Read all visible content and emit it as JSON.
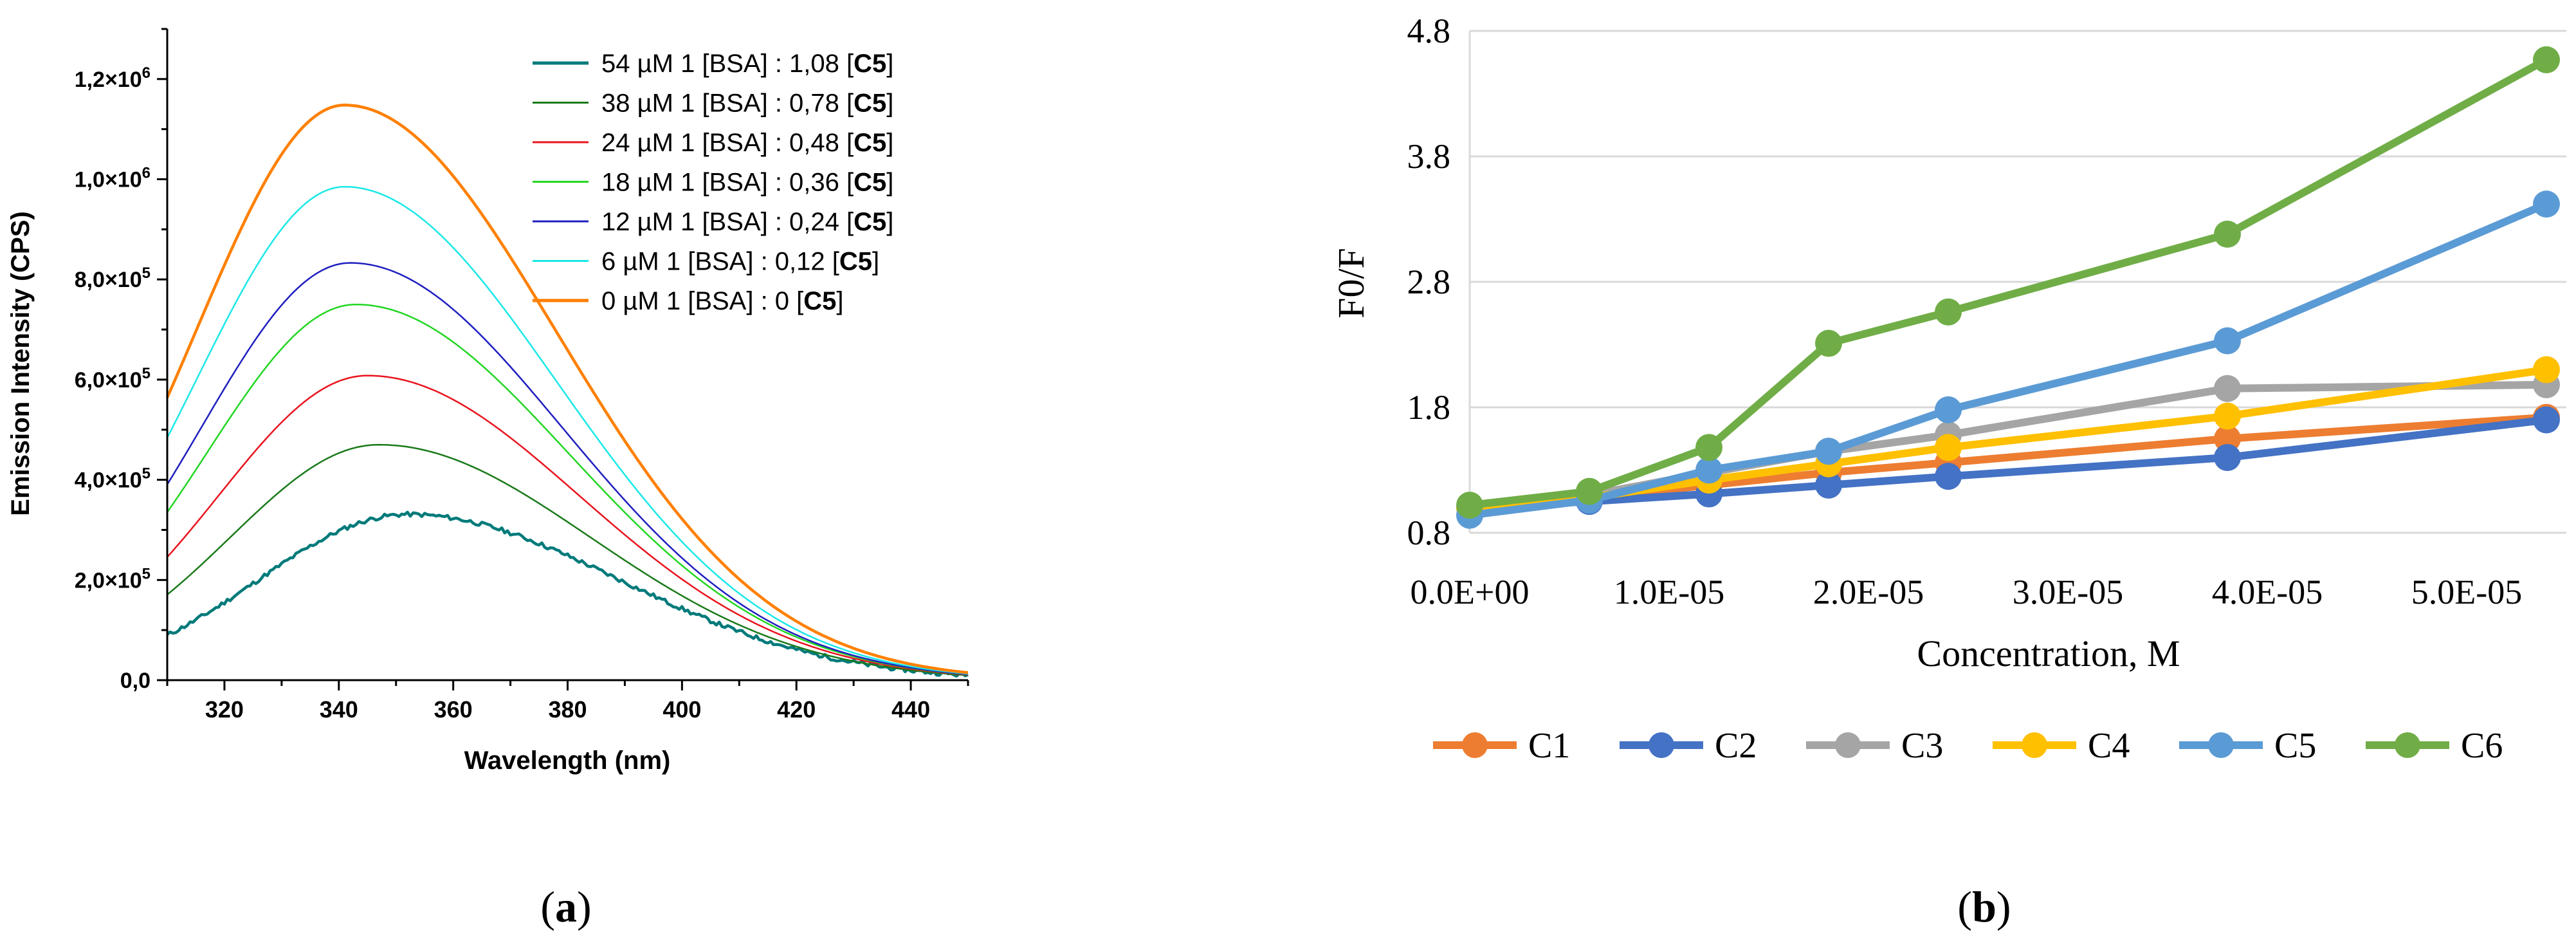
{
  "panel_labels": {
    "a": "a",
    "b": "b"
  },
  "chart_data": [
    {
      "type": "line",
      "title": "",
      "xlabel": "Wavelength (nm)",
      "ylabel": "Emission Intensity (CPS)",
      "xlim": [
        310,
        450
      ],
      "ylim": [
        0,
        1300000
      ],
      "x_ticks": [
        320,
        340,
        360,
        380,
        400,
        420,
        440
      ],
      "x_tick_labels": [
        "320",
        "340",
        "360",
        "380",
        "400",
        "420",
        "440"
      ],
      "y_ticks": [
        0,
        200000,
        400000,
        600000,
        800000,
        1000000,
        1200000
      ],
      "y_tick_labels": [
        {
          "mant": "0,0",
          "exp": ""
        },
        {
          "mant": "2,0×10",
          "exp": "5"
        },
        {
          "mant": "4,0×10",
          "exp": "5"
        },
        {
          "mant": "6,0×10",
          "exp": "5"
        },
        {
          "mant": "8,0×10",
          "exp": "5"
        },
        {
          "mant": "1,0×10",
          "exp": "6"
        },
        {
          "mant": "1,2×10",
          "exp": "6"
        }
      ],
      "series": [
        {
          "name": "54 µM 1 [BSA] : 1,08 [C5]",
          "label_prefix": "54 µM 1 [BSA] : 1,08 [",
          "label_bold": "C5",
          "label_suffix": "]",
          "color": "#007a7a",
          "width": 4.5,
          "peak": 331000,
          "peak_x": 352,
          "noise": true
        },
        {
          "name": "38 µM 1 [BSA] : 0,78 [C5]",
          "label_prefix": "38 µM 1 [BSA] : 0,78 [",
          "label_bold": "C5",
          "label_suffix": "]",
          "color": "#1a7a1a",
          "width": 2.5,
          "peak": 470000,
          "peak_x": 347,
          "noise": false
        },
        {
          "name": "24 µM 1 [BSA] : 0,48 [C5]",
          "label_prefix": "24 µM 1 [BSA] : 0,48 [",
          "label_bold": "C5",
          "label_suffix": "]",
          "color": "#e8141e",
          "width": 2.5,
          "peak": 608000,
          "peak_x": 345,
          "noise": false
        },
        {
          "name": "18 µM 1 [BSA] : 0,36 [C5]",
          "label_prefix": "18 µM 1 [BSA] : 0,36 [",
          "label_bold": "C5",
          "label_suffix": "]",
          "color": "#22d622",
          "width": 2.5,
          "peak": 750000,
          "peak_x": 343,
          "noise": false
        },
        {
          "name": "12 µM 1 [BSA] : 0,24 [C5]",
          "label_prefix": "12 µM 1 [BSA] : 0,24 [",
          "label_bold": "C5",
          "label_suffix": "]",
          "color": "#1f1fbf",
          "width": 2.5,
          "peak": 833000,
          "peak_x": 342,
          "noise": false
        },
        {
          "name": "6 µM 1 [BSA] : 0,12 [C5]",
          "label_prefix": "6 µM   1 [BSA] : 0,12 [",
          "label_bold": "C5",
          "label_suffix": "]",
          "color": "#1ae8e8",
          "width": 2.5,
          "peak": 985000,
          "peak_x": 341,
          "noise": false
        },
        {
          "name": "0 µM 1 [BSA] : 0 [C5]",
          "label_prefix": "0 µM   1 [BSA] : 0 [",
          "label_bold": "C5",
          "label_suffix": "]",
          "color": "#ff8000",
          "width": 4.5,
          "peak": 1148000,
          "peak_x": 341,
          "noise": false
        }
      ]
    },
    {
      "type": "line",
      "title": "",
      "xlabel": "Concentration, M",
      "ylabel": "F0/F",
      "xlim": [
        0,
        5.5e-05
      ],
      "ylim": [
        0.8,
        4.8
      ],
      "x_ticks": [
        0,
        1e-05,
        2e-05,
        3e-05,
        4e-05,
        5e-05
      ],
      "x_tick_labels": [
        "0.0E+00",
        "1.0E-05",
        "2.0E-05",
        "3.0E-05",
        "4.0E-05",
        "5.0E-05"
      ],
      "y_ticks": [
        0.8,
        1.8,
        2.8,
        3.8,
        4.8
      ],
      "y_tick_labels": [
        "0.8",
        "1.8",
        "2.8",
        "3.8",
        "4.8"
      ],
      "x": [
        0,
        6e-06,
        1.2e-05,
        1.8e-05,
        2.4e-05,
        3.8e-05,
        5.4e-05
      ],
      "series": [
        {
          "name": "C1",
          "color": "#ed7d31",
          "values": [
            1.0,
            1.08,
            1.18,
            1.28,
            1.36,
            1.55,
            1.72
          ]
        },
        {
          "name": "C2",
          "color": "#4472c4",
          "values": [
            1.0,
            1.05,
            1.11,
            1.18,
            1.25,
            1.4,
            1.7
          ]
        },
        {
          "name": "C3",
          "color": "#a5a5a5",
          "values": [
            1.0,
            1.1,
            1.28,
            1.45,
            1.58,
            1.95,
            1.98
          ]
        },
        {
          "name": "C4",
          "color": "#ffc000",
          "values": [
            1.0,
            1.08,
            1.22,
            1.35,
            1.48,
            1.73,
            2.1
          ]
        },
        {
          "name": "C5",
          "color": "#5b9bd5",
          "values": [
            0.94,
            1.06,
            1.3,
            1.45,
            1.78,
            2.33,
            3.42
          ]
        },
        {
          "name": "C6",
          "color": "#70ad47",
          "values": [
            1.02,
            1.13,
            1.48,
            2.31,
            2.56,
            3.18,
            4.57
          ]
        }
      ]
    }
  ]
}
